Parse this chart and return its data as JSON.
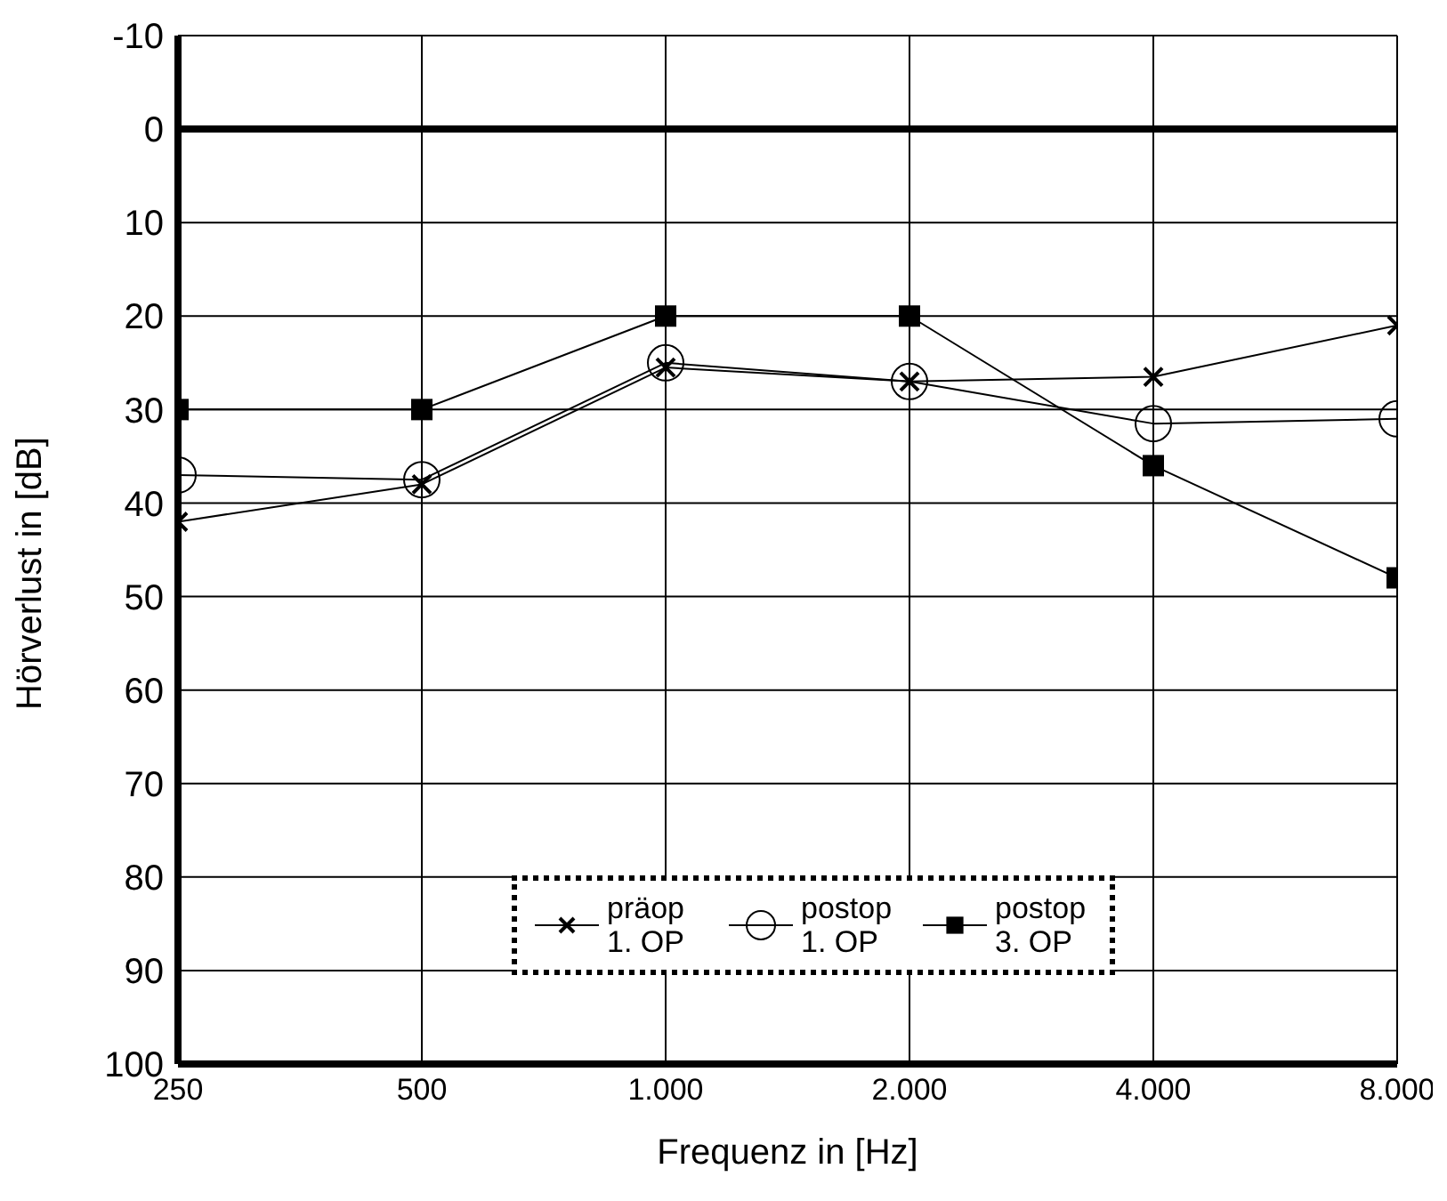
{
  "chart_data": {
    "type": "line",
    "xlabel": "Frequenz in [Hz]",
    "ylabel": "Hörverlust in [dB]",
    "x": [
      250,
      500,
      1000,
      2000,
      4000,
      8000
    ],
    "log": "x",
    "xlim": [
      250,
      8000
    ],
    "xticks": [
      250,
      500,
      {
        "value": 1000,
        "label": "1.000"
      },
      {
        "value": 2000,
        "label": "2.000"
      },
      {
        "value": 4000,
        "label": "4.000"
      },
      {
        "value": 8000,
        "label": "8.000"
      }
    ],
    "ylim": [
      100,
      -10
    ],
    "yticks": [
      -10,
      0,
      10,
      20,
      30,
      40,
      50,
      60,
      70,
      80,
      90,
      100
    ],
    "grid": true,
    "legend": "bottom",
    "ref_lines": [
      {
        "axis": "y",
        "value": 0
      }
    ],
    "series": [
      {
        "name": "präop 1. OP",
        "color": "#000000",
        "marker": "cross",
        "values": [
          42,
          38,
          25.5,
          27,
          26.5,
          21
        ]
      },
      {
        "name": "postop 1. OP",
        "color": "#000000",
        "marker": "circle",
        "values": [
          37,
          37.5,
          25,
          27,
          31.5,
          31
        ]
      },
      {
        "name": "postop 3. OP",
        "color": "#000000",
        "marker": "square",
        "values": [
          30,
          30,
          20,
          20,
          36,
          48
        ]
      }
    ]
  }
}
